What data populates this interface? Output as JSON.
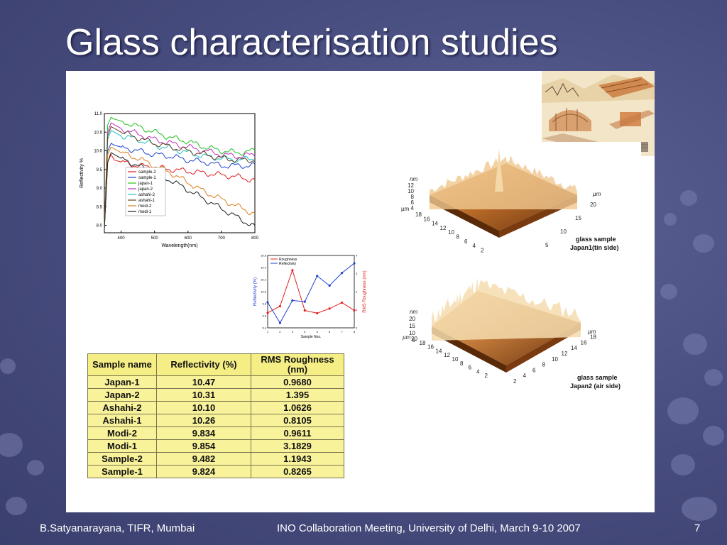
{
  "slide": {
    "title": "Glass characterisation studies",
    "footer_left": "B.Satyanarayana, TIFR, Mumbai",
    "footer_center": "INO Collaboration Meeting, University of Delhi, March 9-10 2007",
    "page_number": "7"
  },
  "table": {
    "headers": [
      "Sample name",
      "Reflectivity (%)",
      "RMS Roughness (nm)"
    ],
    "rows": [
      [
        "Japan-1",
        "10.47",
        "0.9680"
      ],
      [
        "Japan-2",
        "10.31",
        "1.395"
      ],
      [
        "Ashahi-2",
        "10.10",
        "1.0626"
      ],
      [
        "Ashahi-1",
        "10.26",
        "0.8105"
      ],
      [
        "Modi-2",
        "9.834",
        "0.9611"
      ],
      [
        "Modi-1",
        "9.854",
        "3.1829"
      ],
      [
        "Sample-2",
        "9.482",
        "1.1943"
      ],
      [
        "Sample-1",
        "9.824",
        "0.8265"
      ]
    ]
  },
  "afm": {
    "top": {
      "caption_line1": "glass sample",
      "caption_line2": "Japan1(tin side)",
      "z_unit": "nm",
      "axis_unit": "µm",
      "z_ticks": [
        "12",
        "10",
        "8",
        "6",
        "4"
      ],
      "left_ticks": [
        "18",
        "16",
        "14",
        "12",
        "10",
        "8",
        "6",
        "4",
        "2"
      ],
      "right_ticks": [
        "5",
        "10",
        "15",
        "20"
      ]
    },
    "bottom": {
      "caption_line1": "glass sample",
      "caption_line2": "Japan2 (air side)",
      "z_unit": "nm",
      "axis_unit": "µm",
      "z_ticks": [
        "20",
        "15",
        "10",
        "5"
      ],
      "left_ticks": [
        "20",
        "18",
        "16",
        "14",
        "12",
        "10",
        "8",
        "6",
        "4",
        "2"
      ],
      "right_ticks": [
        "2",
        "4",
        "6",
        "8",
        "10",
        "12",
        "14",
        "16",
        "18"
      ]
    }
  },
  "chart_data": [
    {
      "type": "line",
      "xlabel": "Wavelength(nm)",
      "ylabel": "Reflectivity %",
      "xlim": [
        350,
        800
      ],
      "ylim": [
        7.8,
        11.0
      ],
      "xticks": [
        400,
        500,
        600,
        700,
        800
      ],
      "yticks": [
        8.0,
        8.5,
        9.0,
        9.5,
        10.0,
        10.5,
        11.0
      ],
      "legend_position": "center",
      "x": [
        350,
        360,
        370,
        380,
        400,
        450,
        500,
        550,
        600,
        650,
        700,
        750,
        800
      ],
      "series": [
        {
          "name": "sample-2",
          "color": "#e02020",
          "values": [
            7.9,
            9.7,
            9.9,
            9.75,
            9.7,
            9.6,
            9.55,
            9.5,
            9.45,
            9.4,
            9.35,
            9.3,
            9.2
          ]
        },
        {
          "name": "sample-1",
          "color": "#2040d0",
          "values": [
            7.9,
            10.0,
            10.2,
            10.15,
            10.1,
            10.0,
            9.9,
            9.85,
            9.75,
            9.7,
            9.6,
            9.6,
            9.6
          ]
        },
        {
          "name": "japan-1",
          "color": "#20c020",
          "values": [
            7.9,
            10.7,
            10.9,
            10.85,
            10.8,
            10.65,
            10.5,
            10.35,
            10.25,
            10.1,
            10.0,
            9.95,
            10.0
          ]
        },
        {
          "name": "japan-2",
          "color": "#c030c0",
          "values": [
            7.9,
            10.5,
            10.75,
            10.7,
            10.6,
            10.45,
            10.3,
            10.2,
            10.1,
            10.0,
            9.9,
            9.85,
            9.9
          ]
        },
        {
          "name": "ashahi-2",
          "color": "#20c0c0",
          "values": [
            7.9,
            10.3,
            10.55,
            10.5,
            10.4,
            10.3,
            10.15,
            10.05,
            9.95,
            9.85,
            9.8,
            9.75,
            9.8
          ]
        },
        {
          "name": "ashahi-1",
          "color": "#604020",
          "values": [
            7.9,
            10.4,
            10.65,
            10.6,
            10.5,
            10.35,
            10.2,
            10.1,
            10.0,
            9.9,
            9.8,
            9.75,
            9.75
          ]
        },
        {
          "name": "modi-2",
          "color": "#e08020",
          "values": [
            7.9,
            9.9,
            10.1,
            10.05,
            9.95,
            9.8,
            9.6,
            9.4,
            9.15,
            8.9,
            8.7,
            8.5,
            8.3
          ]
        },
        {
          "name": "modi-1",
          "color": "#202020",
          "values": [
            7.9,
            9.7,
            9.95,
            9.9,
            9.8,
            9.6,
            9.4,
            9.2,
            8.95,
            8.7,
            8.45,
            8.2,
            7.95
          ]
        }
      ]
    },
    {
      "type": "line",
      "xlabel": "Sample Nos.",
      "ylabel": "Reflectivity (%)",
      "y2label": "RMS Roughness (nm)",
      "x": [
        1,
        2,
        3,
        4,
        5,
        6,
        7,
        8
      ],
      "xlim": [
        1,
        8
      ],
      "ylim": [
        9.4,
        10.6
      ],
      "y2lim": [
        0,
        4
      ],
      "legend_position": "top-left",
      "series": [
        {
          "name": "Roughness",
          "color": "#e02020",
          "axis": "right",
          "values": [
            0.8265,
            1.1943,
            3.1829,
            0.9611,
            0.8105,
            1.0626,
            1.395,
            0.968
          ]
        },
        {
          "name": "Reflectivity",
          "color": "#2040d0",
          "axis": "left",
          "values": [
            9.824,
            9.482,
            9.854,
            9.834,
            10.26,
            10.1,
            10.31,
            10.47
          ]
        }
      ]
    }
  ]
}
